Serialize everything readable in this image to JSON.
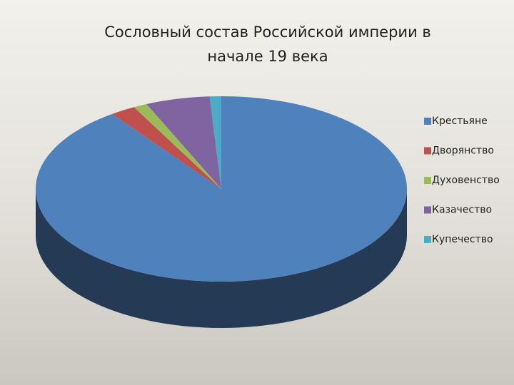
{
  "chart_data": {
    "type": "pie3d",
    "title": "Сословный состав Российской империи в начале 19 века",
    "categories": [
      "Крестьяне",
      "Дворянство",
      "Духовенство",
      "Казачество",
      "Купечество"
    ],
    "values": [
      90,
      2.2,
      1.2,
      5.6,
      1
    ],
    "colors": [
      "#4f81bd",
      "#c0504d",
      "#9bbb59",
      "#8064a2",
      "#4bacc6"
    ],
    "legend": "right"
  }
}
